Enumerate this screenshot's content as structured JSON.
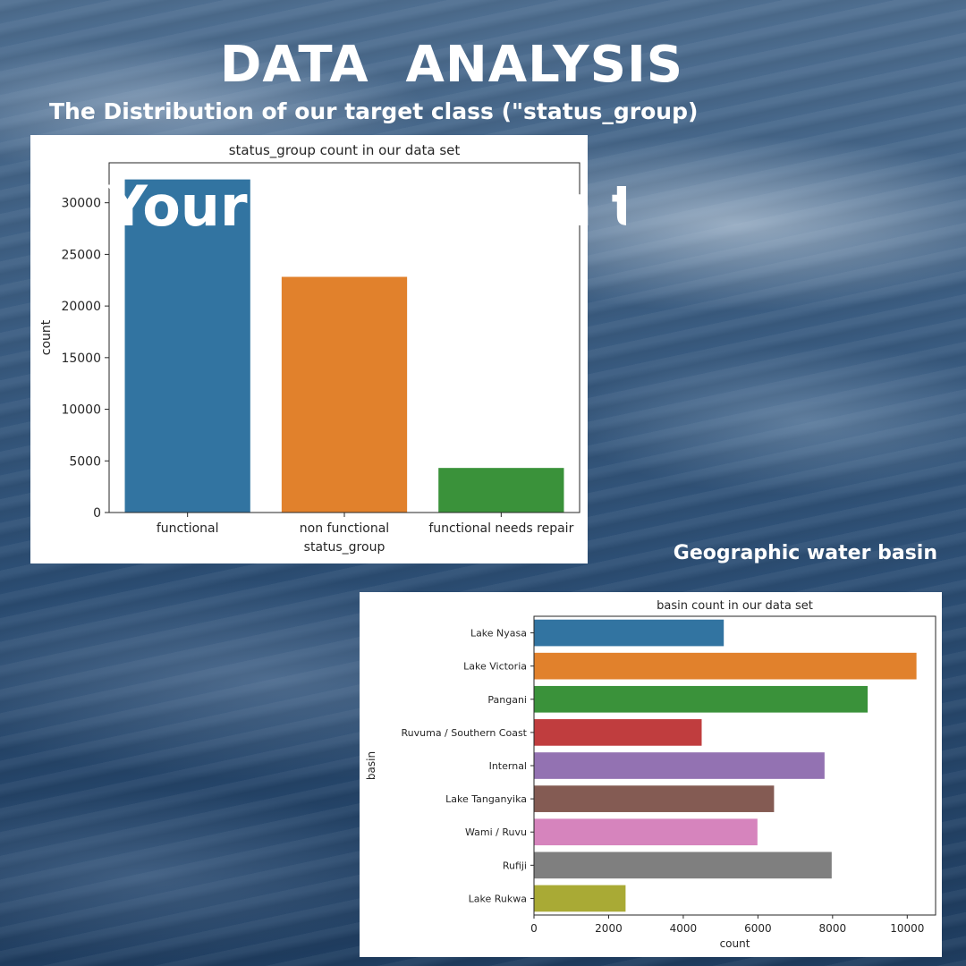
{
  "header": {
    "title": "DATA  ANALYSIS",
    "subtitle": "The Distribution of our target class (\"status_group)",
    "section2": "Geographic water basin",
    "overlay_text": "Your paragraph text"
  },
  "chart_data": [
    {
      "type": "bar",
      "orientation": "vertical",
      "title": "status_group count in our data set",
      "xlabel": "status_group",
      "ylabel": "count",
      "categories": [
        "functional",
        "non functional",
        "functional needs repair"
      ],
      "values": [
        32259,
        22824,
        4317
      ],
      "colors": [
        "#3274a1",
        "#e1812c",
        "#3a923a"
      ],
      "ylim": [
        0,
        33871
      ],
      "yticks": [
        0,
        5000,
        10000,
        15000,
        20000,
        25000,
        30000
      ],
      "ytick_labels": [
        "0",
        "5000",
        "10000",
        "15000",
        "20000",
        "25000",
        "30000"
      ],
      "grid": false
    },
    {
      "type": "bar",
      "orientation": "horizontal",
      "title": "basin count in our data set",
      "xlabel": "count",
      "ylabel": "basin",
      "categories": [
        "Lake Nyasa",
        "Lake Victoria",
        "Pangani",
        "Ruvuma / Southern Coast",
        "Internal",
        "Lake Tanganyika",
        "Wami / Ruvu",
        "Rufiji",
        "Lake Rukwa"
      ],
      "values": [
        5085,
        10248,
        8940,
        4493,
        7785,
        6432,
        5987,
        7976,
        2454
      ],
      "colors": [
        "#3274a1",
        "#e1812c",
        "#3a923a",
        "#c03d3e",
        "#9372b2",
        "#845b53",
        "#d684bd",
        "#7f7f7f",
        "#a9aa35"
      ],
      "xlim": [
        0,
        10760
      ],
      "xticks": [
        0,
        2000,
        4000,
        6000,
        8000,
        10000
      ],
      "xtick_labels": [
        "0",
        "2000",
        "4000",
        "6000",
        "8000",
        "10000"
      ],
      "grid": false
    }
  ]
}
